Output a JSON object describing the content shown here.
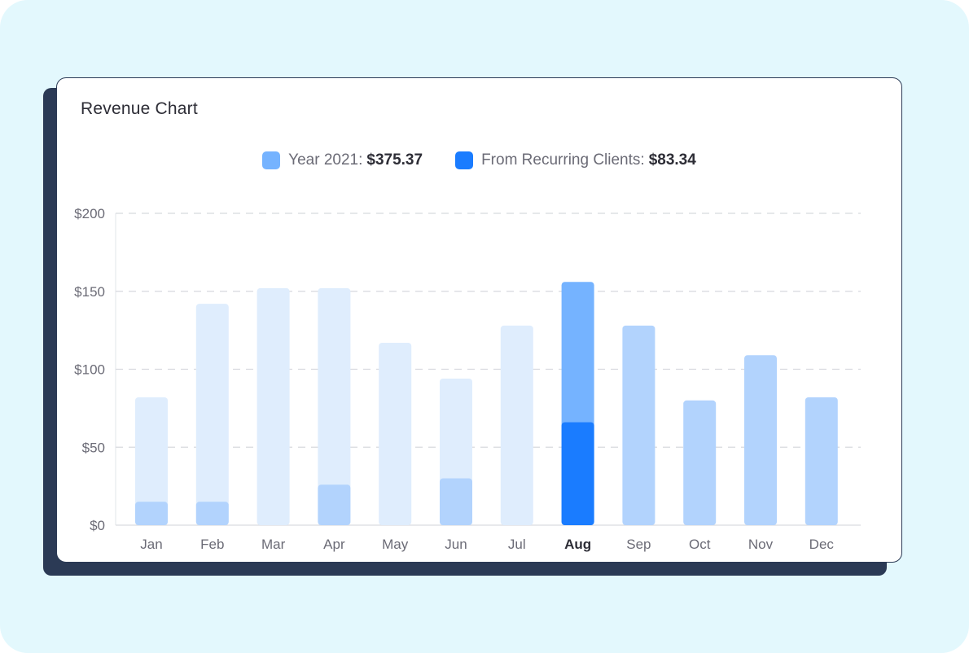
{
  "chart_data": {
    "type": "bar",
    "title": "Revenue Chart",
    "categories": [
      "Jan",
      "Feb",
      "Mar",
      "Apr",
      "May",
      "Jun",
      "Jul",
      "Aug",
      "Sep",
      "Oct",
      "Nov",
      "Dec"
    ],
    "highlight_category": "Aug",
    "series": [
      {
        "name": "Year 2021",
        "summary_value": "$375.37",
        "color": "#75b3ff",
        "values": [
          82,
          142,
          152,
          152,
          117,
          94,
          128,
          156,
          128,
          80,
          109,
          82
        ]
      },
      {
        "name": "From Recurring Clients",
        "summary_value": "$83.34",
        "color": "#1a7cff",
        "values": [
          15,
          15,
          0,
          26,
          0,
          30,
          0,
          66,
          0,
          0,
          0,
          0
        ]
      }
    ],
    "y_ticks": [
      "$0",
      "$50",
      "$100",
      "$150",
      "$200"
    ],
    "ylim": [
      0,
      200
    ],
    "grid": true,
    "legend_position": "top-center",
    "colors": {
      "muted_bar": "#dfedfd",
      "muted_inner": "#b2d3fd",
      "future_bar": "#b2d3fd",
      "highlight_total": "#75b3ff",
      "highlight_inner": "#1a7cff",
      "gridline": "#d7d9de"
    }
  }
}
